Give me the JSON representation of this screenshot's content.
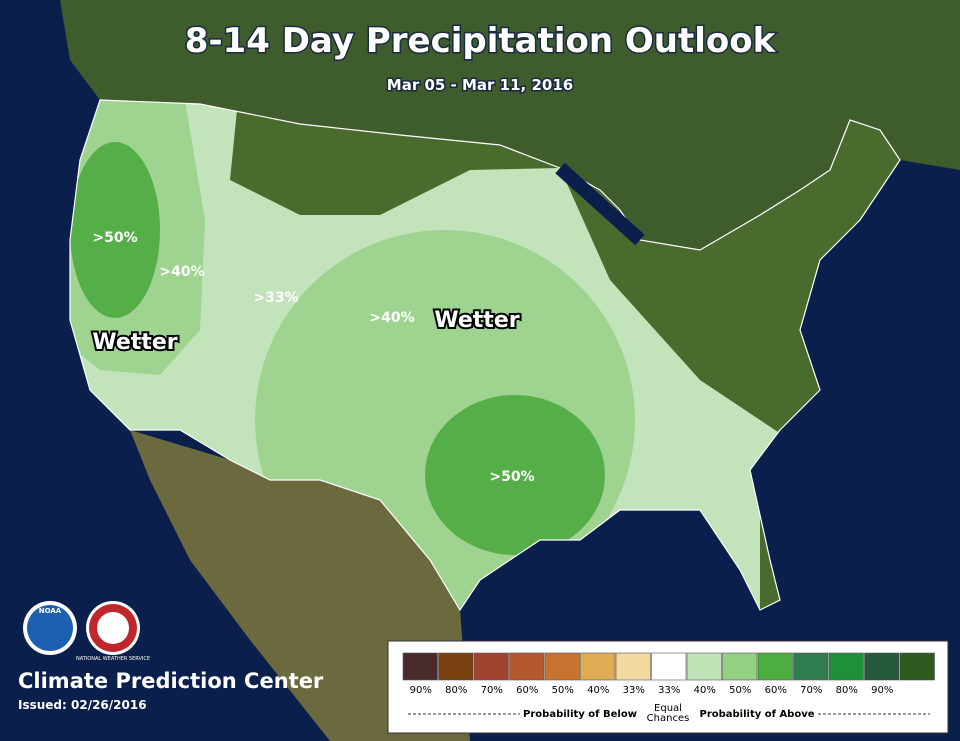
{
  "header": {
    "title": "8-14 Day Precipitation Outlook",
    "subtitle": "Mar 05 - Mar 11, 2016"
  },
  "map_labels": [
    ">50%",
    ">40%",
    ">33%",
    ">40%",
    "Wetter",
    "Wetter",
    ">50%"
  ],
  "logos": [
    "NOAA",
    "NATIONAL WEATHER SERVICE"
  ],
  "footer": {
    "agency": "Climate Prediction Center",
    "issued": "Issued: 02/26/2016"
  },
  "legend": {
    "swatches": [
      {
        "label": "90%",
        "color": "#4a2b2b"
      },
      {
        "label": "80%",
        "color": "#7a400f"
      },
      {
        "label": "70%",
        "color": "#a0442f"
      },
      {
        "label": "60%",
        "color": "#b5572f"
      },
      {
        "label": "50%",
        "color": "#c8732f"
      },
      {
        "label": "40%",
        "color": "#deac52"
      },
      {
        "label": "33%",
        "color": "#f1d9a0"
      },
      {
        "label": "33%",
        "color": "#ffffff"
      },
      {
        "label": "40%",
        "color": "#bfe2b6"
      },
      {
        "label": "50%",
        "color": "#93d081"
      },
      {
        "label": "60%",
        "color": "#4caf40"
      },
      {
        "label": "70%",
        "color": "#2f7d50"
      },
      {
        "label": "80%",
        "color": "#1f8f3b"
      },
      {
        "label": "90%",
        "color": "#245a3b"
      },
      {
        "label": "",
        "color": "#2f5a1f"
      }
    ],
    "below": "Probability of Below",
    "equal": [
      "Equal",
      "Chances"
    ],
    "above": "Probability of Above"
  }
}
